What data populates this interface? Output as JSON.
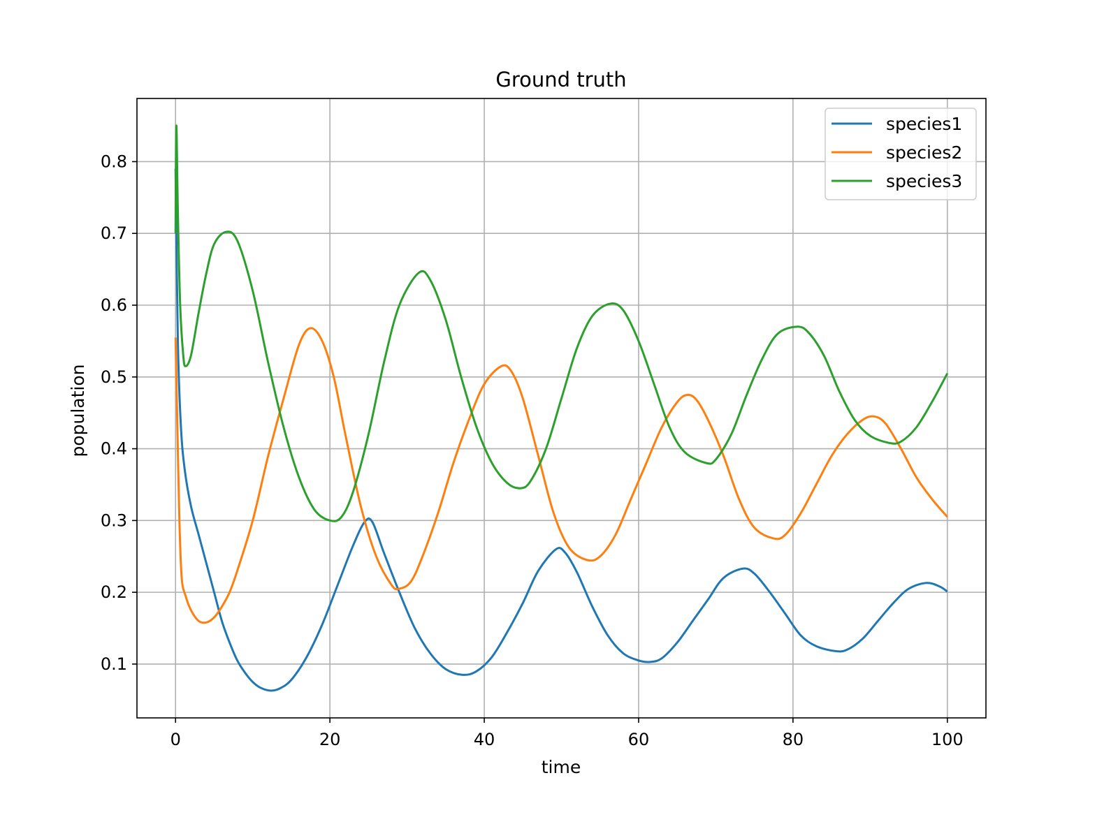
{
  "chart_data": {
    "type": "line",
    "title": "Ground truth",
    "xlabel": "time",
    "ylabel": "population",
    "xlim": [
      -5,
      105
    ],
    "ylim": [
      0.025,
      0.888
    ],
    "x_ticks": [
      0,
      20,
      40,
      60,
      80,
      100
    ],
    "x_tick_labels": [
      "0",
      "20",
      "40",
      "60",
      "80",
      "100"
    ],
    "y_ticks": [
      0.1,
      0.2,
      0.3,
      0.4,
      0.5,
      0.6,
      0.7,
      0.8
    ],
    "y_tick_labels": [
      "0.1",
      "0.2",
      "0.3",
      "0.4",
      "0.5",
      "0.6",
      "0.7",
      "0.8"
    ],
    "grid": true,
    "legend_position": "top-right",
    "series": [
      {
        "name": "species1",
        "color": "#1f77b4",
        "points": [
          [
            0,
            0.79
          ],
          [
            0.3,
            0.55
          ],
          [
            0.7,
            0.43
          ],
          [
            1.2,
            0.37
          ],
          [
            2,
            0.32
          ],
          [
            3,
            0.28
          ],
          [
            4,
            0.24
          ],
          [
            5,
            0.2
          ],
          [
            6,
            0.16
          ],
          [
            7,
            0.13
          ],
          [
            8,
            0.105
          ],
          [
            9,
            0.088
          ],
          [
            10,
            0.075
          ],
          [
            11,
            0.067
          ],
          [
            12.3,
            0.063
          ],
          [
            13.5,
            0.066
          ],
          [
            15,
            0.078
          ],
          [
            17,
            0.11
          ],
          [
            19,
            0.155
          ],
          [
            21,
            0.21
          ],
          [
            23,
            0.265
          ],
          [
            24.5,
            0.298
          ],
          [
            25.5,
            0.298
          ],
          [
            27,
            0.255
          ],
          [
            29,
            0.2
          ],
          [
            31,
            0.15
          ],
          [
            33,
            0.115
          ],
          [
            35,
            0.093
          ],
          [
            37.2,
            0.085
          ],
          [
            39,
            0.09
          ],
          [
            41,
            0.11
          ],
          [
            43,
            0.145
          ],
          [
            45,
            0.185
          ],
          [
            47,
            0.23
          ],
          [
            49.3,
            0.26
          ],
          [
            50.5,
            0.255
          ],
          [
            52,
            0.228
          ],
          [
            54,
            0.18
          ],
          [
            56,
            0.14
          ],
          [
            58,
            0.115
          ],
          [
            60,
            0.105
          ],
          [
            61.5,
            0.103
          ],
          [
            63,
            0.108
          ],
          [
            65,
            0.13
          ],
          [
            67,
            0.16
          ],
          [
            69,
            0.19
          ],
          [
            71,
            0.22
          ],
          [
            73.5,
            0.233
          ],
          [
            75,
            0.226
          ],
          [
            77,
            0.2
          ],
          [
            79,
            0.17
          ],
          [
            81,
            0.14
          ],
          [
            83,
            0.125
          ],
          [
            85.5,
            0.118
          ],
          [
            87,
            0.12
          ],
          [
            89,
            0.135
          ],
          [
            91,
            0.16
          ],
          [
            93,
            0.185
          ],
          [
            95,
            0.205
          ],
          [
            97.3,
            0.213
          ],
          [
            99,
            0.208
          ],
          [
            100,
            0.201
          ]
        ]
      },
      {
        "name": "species2",
        "color": "#ff7f0e",
        "points": [
          [
            0,
            0.555
          ],
          [
            0.2,
            0.45
          ],
          [
            0.5,
            0.3
          ],
          [
            0.8,
            0.22
          ],
          [
            1.3,
            0.195
          ],
          [
            2,
            0.175
          ],
          [
            3,
            0.16
          ],
          [
            4,
            0.158
          ],
          [
            5,
            0.165
          ],
          [
            6,
            0.18
          ],
          [
            7,
            0.2
          ],
          [
            8,
            0.23
          ],
          [
            10,
            0.3
          ],
          [
            12,
            0.39
          ],
          [
            14,
            0.47
          ],
          [
            16,
            0.545
          ],
          [
            17.5,
            0.568
          ],
          [
            19,
            0.55
          ],
          [
            20.5,
            0.5
          ],
          [
            22,
            0.42
          ],
          [
            24,
            0.32
          ],
          [
            26,
            0.25
          ],
          [
            28,
            0.21
          ],
          [
            29,
            0.205
          ],
          [
            30.5,
            0.215
          ],
          [
            32,
            0.25
          ],
          [
            34,
            0.31
          ],
          [
            36,
            0.38
          ],
          [
            38,
            0.44
          ],
          [
            40,
            0.49
          ],
          [
            42.2,
            0.515
          ],
          [
            43.5,
            0.508
          ],
          [
            45,
            0.47
          ],
          [
            47,
            0.39
          ],
          [
            49,
            0.31
          ],
          [
            51,
            0.262
          ],
          [
            53.3,
            0.245
          ],
          [
            55,
            0.25
          ],
          [
            57,
            0.28
          ],
          [
            59,
            0.33
          ],
          [
            61,
            0.38
          ],
          [
            63,
            0.43
          ],
          [
            65,
            0.465
          ],
          [
            66.3,
            0.475
          ],
          [
            67.5,
            0.468
          ],
          [
            69,
            0.44
          ],
          [
            71,
            0.39
          ],
          [
            73,
            0.33
          ],
          [
            75,
            0.29
          ],
          [
            77.5,
            0.275
          ],
          [
            79,
            0.28
          ],
          [
            81,
            0.31
          ],
          [
            83,
            0.35
          ],
          [
            85,
            0.39
          ],
          [
            87,
            0.42
          ],
          [
            89,
            0.44
          ],
          [
            90.5,
            0.445
          ],
          [
            92,
            0.435
          ],
          [
            94,
            0.4
          ],
          [
            96,
            0.36
          ],
          [
            98,
            0.33
          ],
          [
            100,
            0.305
          ]
        ]
      },
      {
        "name": "species3",
        "color": "#2ca02c",
        "points": [
          [
            0,
            0.7
          ],
          [
            0.1,
            0.85
          ],
          [
            0.3,
            0.73
          ],
          [
            0.6,
            0.6
          ],
          [
            1,
            0.53
          ],
          [
            1.3,
            0.515
          ],
          [
            2,
            0.53
          ],
          [
            3,
            0.59
          ],
          [
            4,
            0.645
          ],
          [
            5,
            0.685
          ],
          [
            6.5,
            0.702
          ],
          [
            8,
            0.69
          ],
          [
            10,
            0.62
          ],
          [
            12,
            0.52
          ],
          [
            14,
            0.43
          ],
          [
            16,
            0.36
          ],
          [
            18,
            0.315
          ],
          [
            20,
            0.3
          ],
          [
            21.5,
            0.305
          ],
          [
            23,
            0.34
          ],
          [
            25,
            0.42
          ],
          [
            27,
            0.52
          ],
          [
            29,
            0.6
          ],
          [
            31.5,
            0.645
          ],
          [
            33,
            0.635
          ],
          [
            35,
            0.58
          ],
          [
            37,
            0.5
          ],
          [
            39,
            0.43
          ],
          [
            41,
            0.38
          ],
          [
            43,
            0.352
          ],
          [
            44.7,
            0.345
          ],
          [
            46,
            0.355
          ],
          [
            48,
            0.4
          ],
          [
            50,
            0.47
          ],
          [
            52,
            0.54
          ],
          [
            54,
            0.585
          ],
          [
            56.3,
            0.602
          ],
          [
            58,
            0.593
          ],
          [
            60,
            0.55
          ],
          [
            62,
            0.49
          ],
          [
            64,
            0.43
          ],
          [
            66,
            0.395
          ],
          [
            68.8,
            0.38
          ],
          [
            70,
            0.385
          ],
          [
            72,
            0.42
          ],
          [
            74,
            0.475
          ],
          [
            76,
            0.525
          ],
          [
            78,
            0.56
          ],
          [
            80.5,
            0.57
          ],
          [
            82,
            0.562
          ],
          [
            84,
            0.53
          ],
          [
            86,
            0.48
          ],
          [
            88,
            0.44
          ],
          [
            90,
            0.418
          ],
          [
            92.5,
            0.408
          ],
          [
            94,
            0.41
          ],
          [
            96,
            0.43
          ],
          [
            98,
            0.465
          ],
          [
            100,
            0.505
          ]
        ]
      }
    ]
  }
}
